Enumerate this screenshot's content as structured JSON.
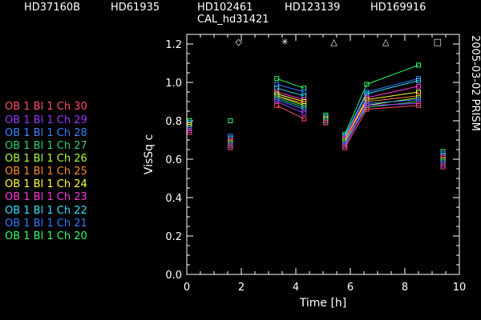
{
  "targets": [
    "HD37160B",
    "HD61935",
    "HD102461",
    "HD123139",
    "HD169916"
  ],
  "calibrator": "CAL_hd31421",
  "date_label": "2005-03-02 PRISM",
  "legend": [
    {
      "label": "OB 1 Bl 1 Ch 30",
      "color": "#ff4d6a"
    },
    {
      "label": "OB 1 Bl 1 Ch 29",
      "color": "#a033ff"
    },
    {
      "label": "OB 1 Bl 1 Ch 28",
      "color": "#3b82ff"
    },
    {
      "label": "OB 1 Bl 1 Ch 27",
      "color": "#2fd06a"
    },
    {
      "label": "OB 1 Bl 1 Ch 26",
      "color": "#b0ff3a"
    },
    {
      "label": "OB 1 Bl 1 Ch 25",
      "color": "#ff8a2a"
    },
    {
      "label": "OB 1 Bl 1 Ch 24",
      "color": "#ffff33"
    },
    {
      "label": "OB 1 Bl 1 Ch 23",
      "color": "#ff33dd"
    },
    {
      "label": "OB 1 Bl 1 Ch 22",
      "color": "#33e0ff"
    },
    {
      "label": "OB 1 Bl 1 Ch 21",
      "color": "#2f79ff"
    },
    {
      "label": "OB 1 Bl 1 Ch 20",
      "color": "#2fff6a"
    }
  ],
  "chart_data": {
    "type": "scatter",
    "xlabel": "Time [h]",
    "ylabel": "VisSq c",
    "xlim": [
      0,
      10
    ],
    "ylim": [
      0.0,
      1.25
    ],
    "xticks": [
      "0",
      "2",
      "4",
      "6",
      "8",
      "10"
    ],
    "yticks": [
      "0.0",
      "0.2",
      "0.4",
      "0.6",
      "0.8",
      "1.0",
      "1.2"
    ],
    "top_markers": [
      {
        "x": 1.9,
        "symbol": "◇"
      },
      {
        "x": 3.6,
        "symbol": "✳"
      },
      {
        "x": 5.4,
        "symbol": "△"
      },
      {
        "x": 7.3,
        "symbol": "△"
      },
      {
        "x": 9.2,
        "symbol": "□"
      }
    ],
    "series": [
      {
        "name": "OB 1 Bl 1 Ch 20",
        "x": [
          0.1,
          1.6,
          3.3,
          4.3,
          5.1,
          5.8,
          6.6,
          8.5,
          9.4
        ],
        "y": [
          0.8,
          0.8,
          1.02,
          0.97,
          0.83,
          0.73,
          0.99,
          1.09,
          0.64
        ]
      },
      {
        "name": "OB 1 Bl 1 Ch 21",
        "x": [
          0.1,
          1.6,
          3.3,
          4.3,
          5.1,
          5.8,
          6.6,
          8.5,
          9.4
        ],
        "y": [
          0.79,
          0.72,
          0.99,
          0.95,
          0.82,
          0.72,
          0.95,
          1.02,
          0.63
        ]
      },
      {
        "name": "OB 1 Bl 1 Ch 22",
        "x": [
          0.1,
          1.6,
          3.3,
          4.3,
          5.1,
          5.8,
          6.6,
          8.5,
          9.4
        ],
        "y": [
          0.79,
          0.71,
          0.97,
          0.93,
          0.82,
          0.72,
          0.94,
          1.01,
          0.62
        ]
      },
      {
        "name": "OB 1 Bl 1 Ch 23",
        "x": [
          0.1,
          1.6,
          3.3,
          4.3,
          5.1,
          5.8,
          6.6,
          8.5,
          9.4
        ],
        "y": [
          0.78,
          0.7,
          0.95,
          0.91,
          0.81,
          0.71,
          0.92,
          0.98,
          0.61
        ]
      },
      {
        "name": "OB 1 Bl 1 Ch 24",
        "x": [
          0.1,
          1.6,
          3.3,
          4.3,
          5.1,
          5.8,
          6.6,
          8.5,
          9.4
        ],
        "y": [
          0.78,
          0.69,
          0.94,
          0.9,
          0.81,
          0.7,
          0.91,
          0.95,
          0.6
        ]
      },
      {
        "name": "OB 1 Bl 1 Ch 25",
        "x": [
          0.1,
          1.6,
          3.3,
          4.3,
          5.1,
          5.8,
          6.6,
          8.5,
          9.4
        ],
        "y": [
          0.77,
          0.69,
          0.93,
          0.89,
          0.8,
          0.7,
          0.9,
          0.93,
          0.6
        ]
      },
      {
        "name": "OB 1 Bl 1 Ch 26",
        "x": [
          0.1,
          1.6,
          3.3,
          4.3,
          5.1,
          5.8,
          6.6,
          8.5,
          9.4
        ],
        "y": [
          0.77,
          0.68,
          0.93,
          0.88,
          0.8,
          0.69,
          0.88,
          0.92,
          0.59
        ]
      },
      {
        "name": "OB 1 Bl 1 Ch 27",
        "x": [
          0.1,
          1.6,
          3.3,
          4.3,
          5.1,
          5.8,
          6.6,
          8.5,
          9.4
        ],
        "y": [
          0.76,
          0.68,
          0.92,
          0.87,
          0.8,
          0.69,
          0.87,
          0.9,
          0.59
        ]
      },
      {
        "name": "OB 1 Bl 1 Ch 28",
        "x": [
          0.1,
          1.6,
          3.3,
          4.3,
          5.1,
          5.8,
          6.6,
          8.5,
          9.4
        ],
        "y": [
          0.76,
          0.67,
          0.91,
          0.86,
          0.79,
          0.68,
          0.89,
          0.91,
          0.58
        ]
      },
      {
        "name": "OB 1 Bl 1 Ch 29",
        "x": [
          0.1,
          1.6,
          3.3,
          4.3,
          5.1,
          5.8,
          6.6,
          8.5,
          9.4
        ],
        "y": [
          0.75,
          0.67,
          0.9,
          0.84,
          0.79,
          0.67,
          0.88,
          0.89,
          0.57
        ]
      },
      {
        "name": "OB 1 Bl 1 Ch 30",
        "x": [
          0.1,
          1.6,
          3.3,
          4.3,
          5.1,
          5.8,
          6.6,
          8.5,
          9.4
        ],
        "y": [
          0.74,
          0.66,
          0.88,
          0.81,
          0.79,
          0.66,
          0.86,
          0.88,
          0.56
        ]
      }
    ]
  }
}
